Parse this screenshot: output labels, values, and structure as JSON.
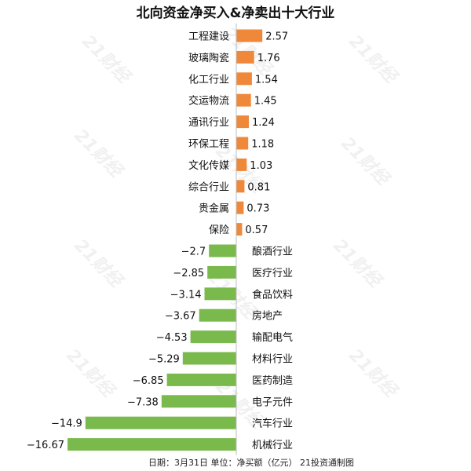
{
  "chart_data": {
    "type": "bar",
    "orientation": "horizontal",
    "title": "北向资金净买入&净卖出十大行业",
    "categories": [
      "工程建设",
      "玻璃陶瓷",
      "化工行业",
      "交运物流",
      "通讯行业",
      "环保工程",
      "文化传媒",
      "综合行业",
      "贵金属",
      "保险",
      "酿酒行业",
      "医疗行业",
      "食品饮料",
      "房地产",
      "输配电气",
      "材料行业",
      "医药制造",
      "电子元件",
      "汽车行业",
      "机械行业"
    ],
    "values": [
      2.57,
      1.76,
      1.54,
      1.45,
      1.24,
      1.18,
      1.03,
      0.81,
      0.73,
      0.57,
      -2.7,
      -2.85,
      -3.14,
      -3.67,
      -4.53,
      -5.29,
      -6.85,
      -7.38,
      -14.9,
      -16.67
    ],
    "value_labels": [
      "2.57",
      "1.76",
      "1.54",
      "1.45",
      "1.24",
      "1.18",
      "1.03",
      "0.81",
      "0.73",
      "0.57",
      "−2.7",
      "−2.85",
      "−3.14",
      "−3.67",
      "−4.53",
      "−5.29",
      "−6.85",
      "−7.38",
      "−14.9",
      "−16.67"
    ],
    "colors": {
      "positive": "#F0883A",
      "negative": "#7AB94C",
      "axis": "#bdbdbd"
    },
    "watermark": "21财经",
    "footnote": "日期：3月31日  单位：净买额（亿元）  21投资通制图"
  }
}
